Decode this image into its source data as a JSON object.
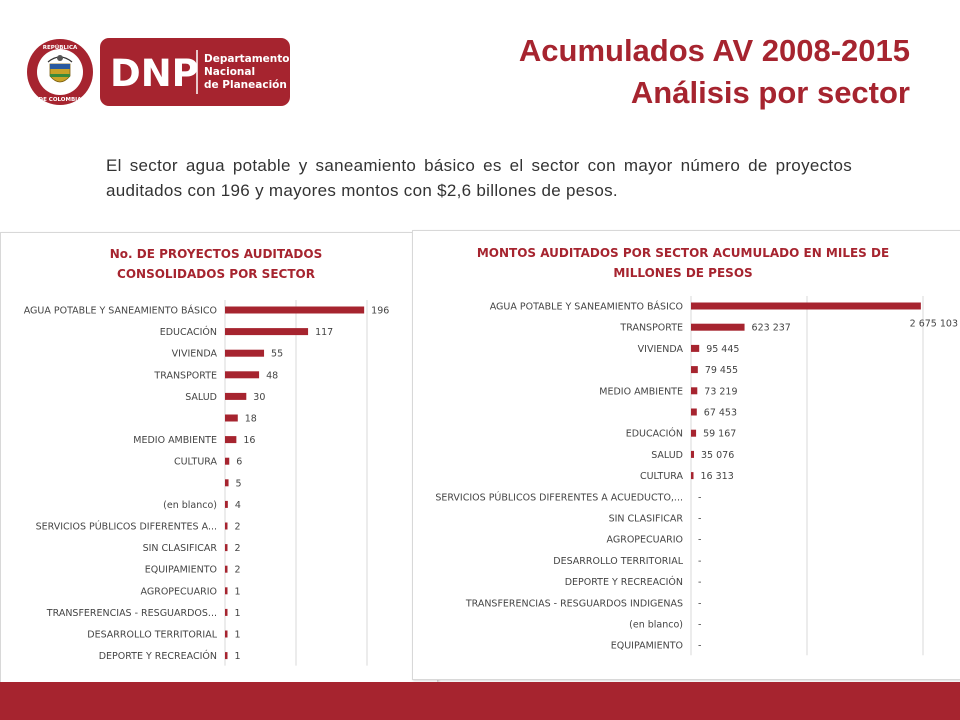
{
  "header": {
    "logo": {
      "seal_text_top": "REPÚBLICA",
      "seal_text_bottom": "DE COLOMBIA",
      "acronym": "DNP",
      "name_line1": "Departamento",
      "name_line2": "Nacional",
      "name_line3": "de Planeación"
    },
    "title_line1": "Acumulados AV 2008-2015",
    "title_line2": "Análisis por sector"
  },
  "intro_text": "El sector agua potable y saneamiento básico es el sector con mayor número de proyectos auditados con 196 y mayores montos con $2,6 billones de pesos.",
  "colors": {
    "accent": "#a6242f",
    "bar": "#a6242f",
    "grid": "#d9d9d9"
  },
  "chart_data": [
    {
      "type": "bar",
      "orientation": "horizontal",
      "title_line1": "No. DE PROYECTOS AUDITADOS",
      "title_line2": "CONSOLIDADOS POR SECTOR",
      "xlim": [
        0,
        200
      ],
      "grid": true,
      "categories": [
        "AGUA POTABLE Y SANEAMIENTO BÁSICO",
        "EDUCACIÓN",
        "VIVIENDA",
        "TRANSPORTE",
        "SALUD",
        "",
        "MEDIO AMBIENTE",
        "CULTURA",
        "",
        "(en blanco)",
        "SERVICIOS PÚBLICOS DIFERENTES A...",
        "SIN CLASIFICAR",
        "EQUIPAMIENTO",
        "AGROPECUARIO",
        "TRANSFERENCIAS - RESGUARDOS...",
        "DESARROLLO TERRITORIAL",
        "DEPORTE Y RECREACIÓN"
      ],
      "values": [
        196,
        117,
        55,
        48,
        30,
        18,
        16,
        6,
        5,
        4,
        2,
        2,
        2,
        1,
        1,
        1,
        1
      ],
      "labels": [
        "196",
        "117",
        "55",
        "48",
        "30",
        "18",
        "16",
        "6",
        "5",
        "4",
        "2",
        "2",
        "2",
        "1",
        "1",
        "1",
        "1"
      ]
    },
    {
      "type": "bar",
      "orientation": "horizontal",
      "title_line1": "MONTOS AUDITADOS POR SECTOR ACUMULADO  EN MILES DE",
      "title_line2": "MILLONES DE PESOS",
      "xlim": [
        0,
        2700000
      ],
      "grid": true,
      "categories": [
        "AGUA POTABLE Y SANEAMIENTO BÁSICO",
        "TRANSPORTE",
        "VIVIENDA",
        "",
        "MEDIO AMBIENTE",
        "",
        "EDUCACIÓN",
        "SALUD",
        "CULTURA",
        "SERVICIOS PÚBLICOS DIFERENTES A ACUEDUCTO,...",
        "SIN CLASIFICAR",
        "AGROPECUARIO",
        "DESARROLLO TERRITORIAL",
        "DEPORTE Y RECREACIÓN",
        "TRANSFERENCIAS - RESGUARDOS INDIGENAS",
        "(en blanco)",
        "EQUIPAMIENTO"
      ],
      "values": [
        2675103,
        623237,
        95445,
        79455,
        73219,
        67453,
        59167,
        35076,
        16313,
        0,
        0,
        0,
        0,
        0,
        0,
        0,
        0
      ],
      "labels": [
        "2 675 103",
        "623 237",
        "95 445",
        "79 455",
        "73 219",
        "67 453",
        "59 167",
        "35 076",
        "16 313",
        "-",
        "-",
        "-",
        "-",
        "-",
        "-",
        "-",
        "-"
      ]
    }
  ]
}
